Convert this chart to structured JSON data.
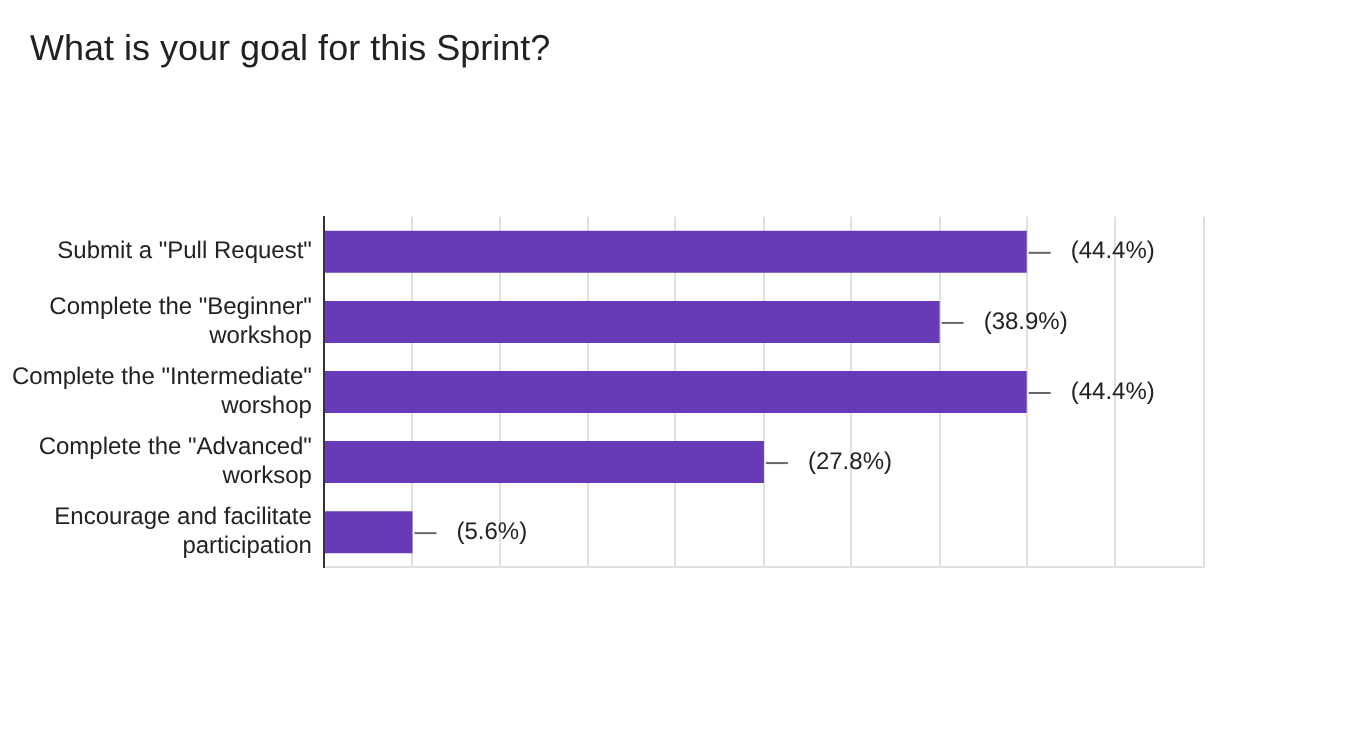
{
  "chart_data": {
    "type": "bar",
    "orientation": "horizontal",
    "title": "What is your goal for this Sprint?",
    "categories": [
      "Submit a \"Pull Request\"",
      "Complete the \"Beginner\" workshop",
      "Complete the \"Intermediate\" worshop",
      "Complete the \"Advanced\" worksop",
      "Encourage and facilitate participation"
    ],
    "values": [
      44.4,
      38.9,
      44.4,
      27.8,
      5.6
    ],
    "value_labels": [
      "(44.4%)",
      "(38.9%)",
      "(44.4%)",
      "(27.8%)",
      "(5.6%)"
    ],
    "color": "#673ab7",
    "xlim": [
      0,
      55.6
    ],
    "xticks": [
      {
        "value": 0,
        "label": null
      },
      {
        "value": 5.56,
        "label": null
      },
      {
        "value": 11.1,
        "label": null
      },
      {
        "value": 16.7,
        "label": null
      },
      {
        "value": 22.2,
        "label": null
      },
      {
        "value": 27.8,
        "label": null
      },
      {
        "value": 33.3,
        "label": null
      },
      {
        "value": 38.9,
        "label": null
      },
      {
        "value": 44.4,
        "label": null
      },
      {
        "value": 50,
        "label": null
      },
      {
        "value": 55.6,
        "label": null
      }
    ],
    "grid": "x",
    "legend": false
  }
}
